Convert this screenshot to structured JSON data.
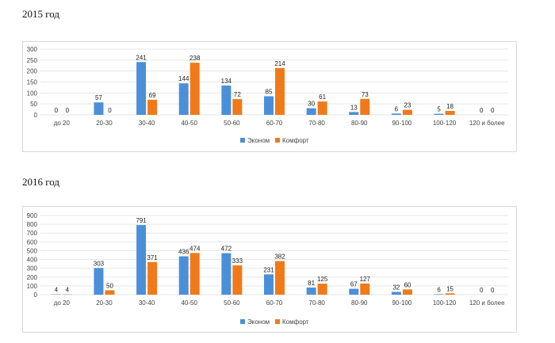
{
  "colors": {
    "econom": "#4a90d9",
    "comfort": "#f07a1a",
    "grid": "#e6e6e6"
  },
  "chart_data": [
    {
      "type": "bar",
      "title": "2015 год",
      "categories": [
        "до 20",
        "20-30",
        "30-40",
        "40-50",
        "50-60",
        "60-70",
        "70-80",
        "80-90",
        "90-100",
        "100-120",
        "120 и более"
      ],
      "ylim": [
        0,
        300
      ],
      "yticks": [
        0,
        50,
        100,
        150,
        200,
        250,
        300
      ],
      "grid": true,
      "legend_position": "bottom",
      "series": [
        {
          "name": "Эконом",
          "values": [
            0,
            57,
            241,
            144,
            134,
            85,
            30,
            13,
            6,
            5,
            0
          ]
        },
        {
          "name": "Комфорт",
          "values": [
            0,
            0,
            69,
            238,
            72,
            214,
            61,
            73,
            23,
            18,
            0
          ]
        }
      ]
    },
    {
      "type": "bar",
      "title": "2016 год",
      "categories": [
        "до 20",
        "20-30",
        "30-40",
        "40-50",
        "50-60",
        "60-70",
        "70-80",
        "80-90",
        "90-100",
        "100-120",
        "120 и более"
      ],
      "ylim": [
        0,
        900
      ],
      "yticks": [
        0,
        100,
        200,
        300,
        400,
        500,
        600,
        700,
        800,
        900
      ],
      "grid": true,
      "legend_position": "bottom",
      "series": [
        {
          "name": "Эконом",
          "values": [
            4,
            303,
            791,
            436,
            472,
            231,
            81,
            67,
            32,
            6,
            0
          ]
        },
        {
          "name": "Комфорт",
          "values": [
            4,
            50,
            371,
            474,
            333,
            382,
            125,
            127,
            60,
            15,
            0
          ]
        }
      ]
    }
  ]
}
